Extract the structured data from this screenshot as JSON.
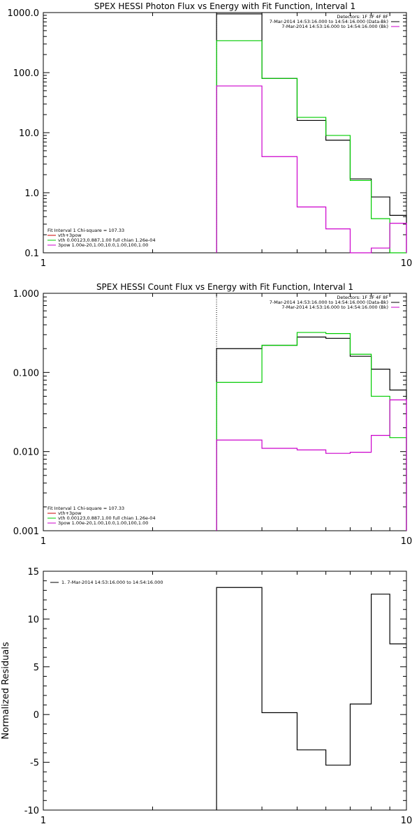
{
  "chart_data": [
    {
      "type": "line",
      "title": "SPEX HESSI Photon Flux vs Energy with Fit Function, Interval 1",
      "xscale": "log",
      "yscale": "log",
      "xlim": [
        1,
        10
      ],
      "ylim": [
        0.1,
        1000
      ],
      "xticks": [
        1,
        10
      ],
      "xtick_labels": [
        "1",
        "10"
      ],
      "yticks": [
        0.1,
        1,
        10,
        100,
        1000
      ],
      "ytick_labels": [
        "0.1",
        "1.0",
        "10.0",
        "100.0",
        "1000.0"
      ],
      "xlabel": "",
      "ylabel": "",
      "vline": 3,
      "legend_right": {
        "lines": [
          {
            "text": "Detectors: 1F 3F 4F 8F",
            "color": ""
          },
          {
            "text": "7-Mar-2014 14:53:16.000 to 14:54:16.000 (Data-Bk)",
            "color": "#000000"
          },
          {
            "text": "7-Mar-2014 14:53:16.000 to 14:54:16.000 (Bk)",
            "color": "#cc00cc"
          }
        ]
      },
      "legend_left": {
        "header": "Fit Interval 1    Chi-square = 107.33",
        "lines": [
          {
            "text": "vth+3pow",
            "color": "#cc0000"
          },
          {
            "text": "vth 0.00123,0.887,1.00  full chian 1.26e-04",
            "color": "#00cc00"
          },
          {
            "text": "3pow 1.00e-20,1.00,10.0,1.00,100,1.00",
            "color": "#cc00cc"
          }
        ]
      },
      "series": [
        {
          "color": "#000000",
          "edges": [
            3,
            4,
            5,
            6,
            7,
            8,
            9,
            10
          ],
          "values": [
            950,
            80,
            16,
            7.5,
            1.7,
            0.85,
            0.42
          ]
        },
        {
          "color": "#00cc00",
          "edges": [
            3,
            4,
            5,
            6,
            7,
            8,
            9,
            10
          ],
          "values": [
            340,
            80,
            18,
            9,
            1.6,
            0.37,
            0.1
          ]
        },
        {
          "color": "#cc00cc",
          "edges": [
            3,
            4,
            5,
            6,
            7,
            8,
            9,
            10
          ],
          "values": [
            60,
            4,
            0.58,
            0.25,
            0.095,
            0.12,
            0.31
          ]
        }
      ]
    },
    {
      "type": "line",
      "title": "SPEX HESSI Count Flux vs Energy with Fit Function, Interval 1",
      "xscale": "log",
      "yscale": "log",
      "xlim": [
        1,
        10
      ],
      "ylim": [
        0.001,
        1
      ],
      "xticks": [
        1,
        10
      ],
      "xtick_labels": [
        "1",
        "10"
      ],
      "yticks": [
        0.001,
        0.01,
        0.1,
        1
      ],
      "ytick_labels": [
        "0.001",
        "0.010",
        "0.100",
        "1.000"
      ],
      "xlabel": "",
      "ylabel": "",
      "vline": 3,
      "legend_right": {
        "lines": [
          {
            "text": "Detectors: 1F 3F 4F 8F",
            "color": ""
          },
          {
            "text": "7-Mar-2014 14:53:16.000 to 14:54:16.000 (Data-Bk)",
            "color": "#000000"
          },
          {
            "text": "7-Mar-2014 14:53:16.000 to 14:54:16.000 (Bk)",
            "color": "#cc00cc"
          }
        ]
      },
      "legend_left": {
        "header": "Fit Interval 1    Chi-square = 107.33",
        "lines": [
          {
            "text": "vth+3pow",
            "color": "#cc0000"
          },
          {
            "text": "vth 0.00123,0.887,1.00  full chian 1.26e-04",
            "color": "#00cc00"
          },
          {
            "text": "3pow 1.00e-20,1.00,10.0,1.00,100,1.00",
            "color": "#cc00cc"
          }
        ]
      },
      "series": [
        {
          "color": "#000000",
          "edges": [
            3,
            4,
            5,
            6,
            7,
            8,
            9,
            10
          ],
          "values": [
            0.2,
            0.22,
            0.28,
            0.27,
            0.16,
            0.11,
            0.06
          ]
        },
        {
          "color": "#00cc00",
          "edges": [
            3,
            4,
            5,
            6,
            7,
            8,
            9,
            10
          ],
          "values": [
            0.075,
            0.22,
            0.32,
            0.31,
            0.17,
            0.05,
            0.015
          ]
        },
        {
          "color": "#cc00cc",
          "edges": [
            3,
            4,
            5,
            6,
            7,
            8,
            9,
            10
          ],
          "values": [
            0.014,
            0.011,
            0.0105,
            0.0095,
            0.0098,
            0.016,
            0.045
          ]
        }
      ]
    },
    {
      "type": "line",
      "title": "",
      "xscale": "log",
      "yscale": "linear",
      "xlim": [
        1,
        10
      ],
      "ylim": [
        -10,
        15
      ],
      "xticks": [
        1,
        10
      ],
      "xtick_labels": [
        "1",
        "10"
      ],
      "yticks": [
        -10,
        -5,
        0,
        5,
        10,
        15
      ],
      "ytick_labels": [
        "-10",
        "-5",
        "0",
        "5",
        "10",
        "15"
      ],
      "xlabel": "",
      "ylabel": "Normalized Residuals",
      "legend_left_top": {
        "lines": [
          {
            "text": "1.  7-Mar-2014 14:53:16.000 to 14:54:16.000",
            "color": "#000000"
          }
        ]
      },
      "series": [
        {
          "color": "#000000",
          "edges": [
            3,
            4,
            5,
            6,
            7,
            8,
            9,
            10
          ],
          "values": [
            13.3,
            0.2,
            -3.7,
            -5.3,
            1.1,
            12.6,
            7.4
          ]
        }
      ]
    }
  ]
}
